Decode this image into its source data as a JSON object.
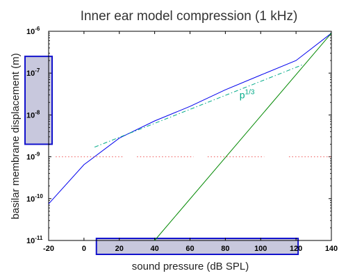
{
  "chart_data": {
    "type": "line",
    "title": "Inner ear model compression (1 kHz)",
    "xlabel": "sound pressure (dB SPL)",
    "ylabel": "basilar membrane displacement (m)",
    "xlim": [
      -20,
      140
    ],
    "ylim": [
      1e-11,
      1e-06
    ],
    "yscale": "log",
    "xticks": [
      -20,
      0,
      20,
      40,
      60,
      80,
      100,
      120,
      140
    ],
    "xtick_labels": [
      "-20",
      "0",
      "20",
      "40",
      "60",
      "80",
      "100",
      "120",
      "140"
    ],
    "yticks": [
      -11,
      -10,
      -9,
      -8,
      -7,
      -6
    ],
    "ytick_base": "10",
    "ytick_exps": [
      "-11",
      "-10",
      "-9",
      "-8",
      "-7",
      "-6"
    ],
    "grid": false,
    "series": [
      {
        "color": "#0000ee",
        "style": "solid",
        "x": [
          -20,
          0,
          20,
          40,
          60,
          80,
          100,
          120,
          140
        ],
        "y": [
          7.5e-11,
          6.5e-10,
          2.8e-09,
          7.2e-09,
          1.6e-08,
          4e-08,
          9e-08,
          2e-07,
          9e-07
        ]
      },
      {
        "color": "#00aa88",
        "style": "dashdot",
        "x": [
          6,
          124
        ],
        "y": [
          1.7e-09,
          1.6e-07
        ]
      },
      {
        "color": "#008800",
        "style": "solid",
        "x": [
          40,
          140
        ],
        "y": [
          1e-11,
          9e-07
        ]
      },
      {
        "color": "#ee5555",
        "style": "dotted",
        "segments": [
          [
            -16,
            22
          ],
          [
            30,
            62
          ],
          [
            70,
            102
          ],
          [
            116,
            140
          ]
        ],
        "y": 1e-09
      }
    ],
    "annotations": [
      {
        "base": "p",
        "exp": "1/3",
        "x": 88,
        "y": 2.5e-08,
        "color": "#00aa88"
      }
    ],
    "highlight_boxes": [
      {
        "axis": "y",
        "from_exp": -8.7,
        "to_exp": -6.6
      },
      {
        "axis": "x",
        "from": 20,
        "to": 120
      }
    ]
  }
}
